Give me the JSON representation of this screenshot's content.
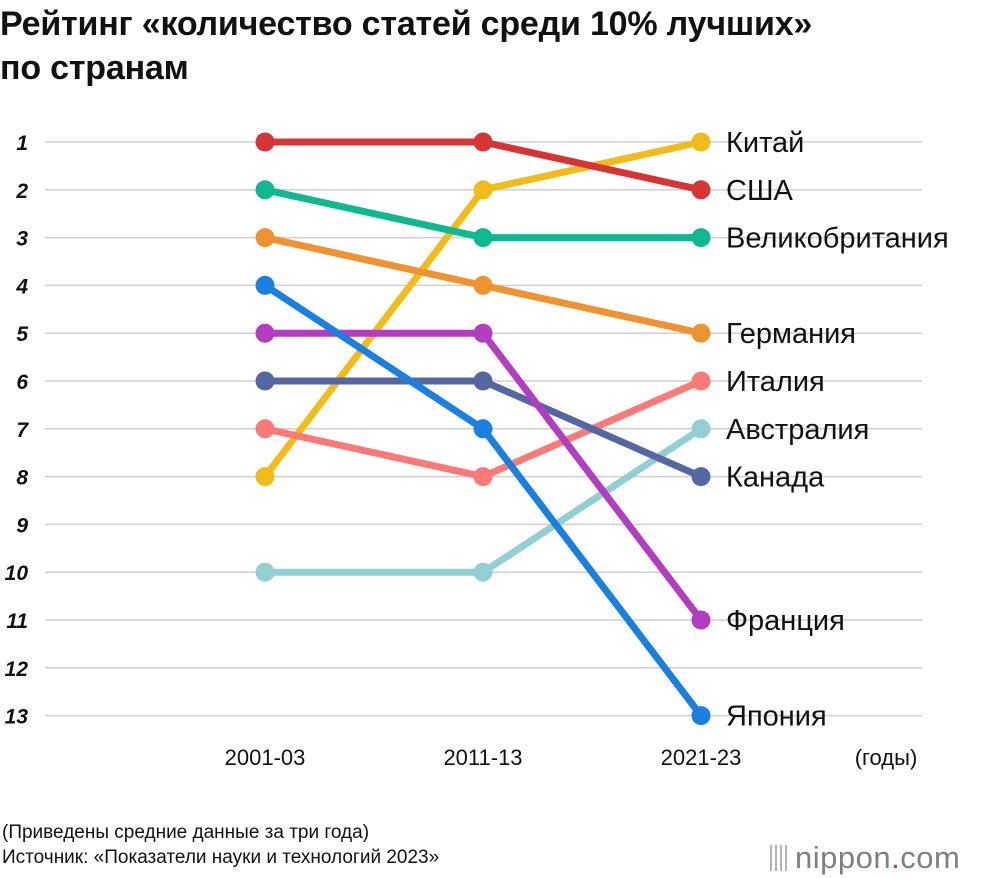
{
  "title_lines": [
    "Рейтинг «количество статей среди 10% лучших»",
    "по странам"
  ],
  "footer": {
    "note": "(Приведены средние данные за три года)",
    "source": "Источник: «Показатели науки и технологий 2023»"
  },
  "logo": {
    "name": "nippon",
    "dot": ".",
    "tld": "com"
  },
  "chart_data": {
    "type": "line",
    "x": [
      "2001-03",
      "2011-13",
      "2021-23"
    ],
    "x_unit": "(годы)",
    "y_ticks": [
      1,
      2,
      3,
      4,
      5,
      6,
      7,
      8,
      9,
      10,
      11,
      12,
      13
    ],
    "ylim": [
      1,
      13
    ],
    "y_inverted": true,
    "grid": true,
    "series": [
      {
        "name": "Китай",
        "values": [
          8,
          2,
          1
        ],
        "color": "#f2bc18"
      },
      {
        "name": "США",
        "values": [
          1,
          1,
          2
        ],
        "color": "#d63535"
      },
      {
        "name": "Великобритания",
        "values": [
          2,
          3,
          3
        ],
        "color": "#10b890"
      },
      {
        "name": "Германия",
        "values": [
          3,
          4,
          5
        ],
        "color": "#ef9330"
      },
      {
        "name": "Италия",
        "values": [
          7,
          8,
          6
        ],
        "color": "#fb7a78"
      },
      {
        "name": "Австралия",
        "values": [
          10,
          10,
          7
        ],
        "color": "#92cfd2"
      },
      {
        "name": "Канада",
        "values": [
          6,
          6,
          8
        ],
        "color": "#5467a3"
      },
      {
        "name": "Франция",
        "values": [
          5,
          5,
          11
        ],
        "color": "#b33cc0"
      },
      {
        "name": "Япония",
        "values": [
          4,
          7,
          13
        ],
        "color": "#1a80e0"
      }
    ]
  }
}
